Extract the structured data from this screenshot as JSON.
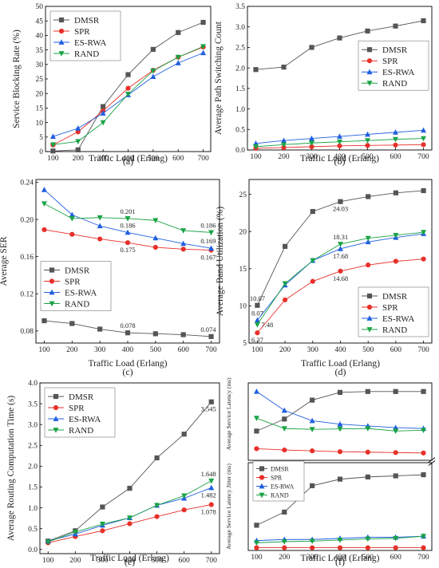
{
  "series_style": {
    "DMSR": {
      "color": "#555555",
      "marker": "square"
    },
    "SPR": {
      "color": "#e8302a",
      "marker": "circle"
    },
    "ES-RWA": {
      "color": "#1f5fe0",
      "marker": "triangle"
    },
    "RAND": {
      "color": "#1aa346",
      "marker": "triangle-down"
    }
  },
  "chart_data": [
    {
      "id": "a",
      "type": "line",
      "panel_label": "(a)",
      "xlabel": "Traffic Load (Erlang)",
      "ylabel": "Service Blocking Rate (%)",
      "x": [
        100,
        200,
        300,
        400,
        500,
        600,
        700
      ],
      "xticks": [
        100,
        200,
        300,
        400,
        500,
        600,
        700
      ],
      "xlim": [
        70,
        730
      ],
      "ylim": [
        0,
        50
      ],
      "yticks": [
        0,
        5,
        10,
        15,
        20,
        25,
        30,
        35,
        40,
        45,
        50
      ],
      "legend": "top-left",
      "series": [
        {
          "name": "DMSR",
          "values": [
            0.2,
            0.6,
            15.5,
            26.5,
            35.2,
            41.0,
            44.5
          ]
        },
        {
          "name": "SPR",
          "values": [
            2.3,
            6.8,
            14.0,
            21.8,
            28.0,
            32.5,
            36.0
          ]
        },
        {
          "name": "ES-RWA",
          "values": [
            5.2,
            8.0,
            13.2,
            19.5,
            25.8,
            30.5,
            34.0
          ]
        },
        {
          "name": "RAND",
          "values": [
            2.4,
            3.5,
            10.0,
            19.8,
            27.8,
            32.5,
            36.2
          ]
        }
      ]
    },
    {
      "id": "b",
      "type": "line",
      "panel_label": "(b)",
      "xlabel": "Traffic Load (Erlang)",
      "ylabel": "Average Path Switching Count",
      "x": [
        100,
        200,
        300,
        400,
        500,
        600,
        700
      ],
      "xticks": [
        100,
        200,
        300,
        400,
        500,
        600,
        700
      ],
      "xlim": [
        70,
        730
      ],
      "ylim": [
        0,
        3.5
      ],
      "yticks": [
        0.0,
        0.5,
        1.0,
        1.5,
        2.0,
        2.5,
        3.0,
        3.5
      ],
      "legend": "center-right",
      "series": [
        {
          "name": "DMSR",
          "values": [
            1.96,
            2.02,
            2.5,
            2.73,
            2.9,
            3.02,
            3.15
          ]
        },
        {
          "name": "SPR",
          "values": [
            0.04,
            0.06,
            0.08,
            0.1,
            0.11,
            0.12,
            0.13
          ]
        },
        {
          "name": "ES-RWA",
          "values": [
            0.16,
            0.23,
            0.28,
            0.33,
            0.38,
            0.43,
            0.48
          ]
        },
        {
          "name": "RAND",
          "values": [
            0.08,
            0.13,
            0.17,
            0.2,
            0.23,
            0.26,
            0.28
          ]
        }
      ]
    },
    {
      "id": "c",
      "type": "line",
      "panel_label": "(c)",
      "xlabel": "Traffic Load (Erlang)",
      "ylabel": "Average SER",
      "x": [
        100,
        200,
        300,
        400,
        500,
        600,
        700
      ],
      "xticks": [
        100,
        200,
        300,
        400,
        500,
        600,
        700
      ],
      "xlim": [
        70,
        730
      ],
      "ylim": [
        0.067,
        0.243
      ],
      "yticks": [
        0.08,
        0.12,
        0.16,
        0.2,
        0.24
      ],
      "legend": "center-left",
      "annotations": [
        {
          "series": "RAND",
          "x": 400,
          "text": "0.201",
          "pos": "above"
        },
        {
          "series": "RAND",
          "x": 700,
          "text": "0.186",
          "pos": "above"
        },
        {
          "series": "ES-RWA",
          "x": 400,
          "text": "0.186",
          "pos": "above"
        },
        {
          "series": "ES-RWA",
          "x": 700,
          "text": "0.169",
          "pos": "above"
        },
        {
          "series": "SPR",
          "x": 400,
          "text": "0.175",
          "pos": "below"
        },
        {
          "series": "SPR",
          "x": 700,
          "text": "0.167",
          "pos": "below"
        },
        {
          "series": "DMSR",
          "x": 400,
          "text": "0.078",
          "pos": "above"
        },
        {
          "series": "DMSR",
          "x": 700,
          "text": "0.074",
          "pos": "above"
        }
      ],
      "series": [
        {
          "name": "DMSR",
          "values": [
            0.091,
            0.088,
            0.082,
            0.078,
            0.077,
            0.076,
            0.074
          ]
        },
        {
          "name": "SPR",
          "values": [
            0.189,
            0.184,
            0.179,
            0.175,
            0.17,
            0.168,
            0.167
          ]
        },
        {
          "name": "ES-RWA",
          "values": [
            0.232,
            0.205,
            0.193,
            0.186,
            0.18,
            0.174,
            0.169
          ]
        },
        {
          "name": "RAND",
          "values": [
            0.217,
            0.201,
            0.202,
            0.201,
            0.199,
            0.188,
            0.186
          ]
        }
      ]
    },
    {
      "id": "d",
      "type": "line",
      "panel_label": "(d)",
      "xlabel": "Traffic Load (Erlang)",
      "ylabel": "Average Band Utilization (%)",
      "x": [
        100,
        200,
        300,
        400,
        500,
        600,
        700
      ],
      "xticks": [
        100,
        200,
        300,
        400,
        500,
        600,
        700
      ],
      "xlim": [
        70,
        730
      ],
      "ylim": [
        5,
        27
      ],
      "yticks": [
        5,
        10,
        15,
        20,
        25
      ],
      "legend": "bottom-right",
      "annotations": [
        {
          "series": "DMSR",
          "x": 100,
          "text": "10.07",
          "pos": "above"
        },
        {
          "series": "ES-RWA",
          "x": 100,
          "text": "8.07",
          "pos": "above"
        },
        {
          "series": "RAND",
          "x": 100,
          "text": "7.48",
          "pos": "right"
        },
        {
          "series": "SPR",
          "x": 100,
          "text": "6.37",
          "pos": "below"
        },
        {
          "series": "DMSR",
          "x": 400,
          "text": "24.03",
          "pos": "below"
        },
        {
          "series": "RAND",
          "x": 400,
          "text": "18.31",
          "pos": "above"
        },
        {
          "series": "ES-RWA",
          "x": 400,
          "text": "17.68",
          "pos": "below"
        },
        {
          "series": "SPR",
          "x": 400,
          "text": "14.68",
          "pos": "below"
        }
      ],
      "series": [
        {
          "name": "DMSR",
          "values": [
            10.07,
            18.0,
            22.7,
            24.03,
            24.7,
            25.2,
            25.5
          ]
        },
        {
          "name": "SPR",
          "values": [
            6.37,
            10.8,
            13.3,
            14.68,
            15.5,
            16.0,
            16.3
          ]
        },
        {
          "name": "ES-RWA",
          "values": [
            8.07,
            12.8,
            16.1,
            17.68,
            18.6,
            19.2,
            19.7
          ]
        },
        {
          "name": "RAND",
          "values": [
            7.48,
            13.0,
            16.1,
            18.31,
            19.1,
            19.5,
            19.9
          ]
        }
      ]
    },
    {
      "id": "e",
      "type": "line",
      "panel_label": "(e)",
      "xlabel": "Traffic Load (Erlang)",
      "ylabel": "Average Routing Computation Time (s)",
      "x": [
        100,
        200,
        300,
        400,
        500,
        600,
        700
      ],
      "xticks": [
        100,
        200,
        300,
        400,
        500,
        600,
        700
      ],
      "xlim": [
        70,
        730
      ],
      "ylim": [
        -0.1,
        4.0
      ],
      "yticks": [
        0.0,
        0.5,
        1.0,
        1.5,
        2.0,
        2.5,
        3.0,
        3.5,
        4.0
      ],
      "legend": "top-left",
      "annotations": [
        {
          "series": "DMSR",
          "x": 700,
          "text": "3.545",
          "pos": "below"
        },
        {
          "series": "RAND",
          "x": 700,
          "text": "1.648",
          "pos": "above"
        },
        {
          "series": "ES-RWA",
          "x": 700,
          "text": "1.482",
          "pos": "below"
        },
        {
          "series": "SPR",
          "x": 700,
          "text": "1.078",
          "pos": "below"
        }
      ],
      "series": [
        {
          "name": "DMSR",
          "values": [
            0.2,
            0.45,
            1.02,
            1.47,
            2.2,
            2.77,
            3.545
          ]
        },
        {
          "name": "SPR",
          "values": [
            0.16,
            0.31,
            0.45,
            0.62,
            0.79,
            0.95,
            1.078
          ]
        },
        {
          "name": "ES-RWA",
          "values": [
            0.2,
            0.37,
            0.58,
            0.76,
            1.06,
            1.23,
            1.482
          ]
        },
        {
          "name": "RAND",
          "values": [
            0.18,
            0.42,
            0.61,
            0.76,
            1.06,
            1.29,
            1.648
          ]
        }
      ]
    },
    {
      "id": "f_top",
      "type": "line",
      "panel_label": "",
      "xlabel": "",
      "ylabel": "Average Service Latency (ms)",
      "x": [
        100,
        200,
        300,
        400,
        500,
        600,
        700
      ],
      "xticks": [],
      "xlim": [
        70,
        730
      ],
      "ylim": [
        6,
        15
      ],
      "yticks": [],
      "legend": "none",
      "series": [
        {
          "name": "DMSR",
          "values": [
            9.4,
            10.8,
            13.0,
            13.9,
            14.0,
            14.0,
            14.0
          ]
        },
        {
          "name": "SPR",
          "values": [
            7.35,
            7.2,
            7.1,
            7.0,
            6.95,
            6.9,
            6.85
          ]
        },
        {
          "name": "ES-RWA",
          "values": [
            14.0,
            11.8,
            10.6,
            10.2,
            10.0,
            9.8,
            9.7
          ]
        },
        {
          "name": "RAND",
          "values": [
            10.9,
            9.7,
            9.6,
            9.65,
            9.7,
            9.4,
            9.5
          ]
        }
      ]
    },
    {
      "id": "f_bottom",
      "type": "line",
      "panel_label": "(f)",
      "xlabel": "Traffic Load (Erlang)",
      "ylabel": "Average Service Latency Jitter (ms)",
      "x": [
        100,
        200,
        300,
        400,
        500,
        600,
        700
      ],
      "xticks": [
        100,
        200,
        300,
        400,
        500,
        600,
        700
      ],
      "xlim": [
        70,
        730
      ],
      "ylim": [
        0,
        8
      ],
      "yticks": [],
      "legend": "top-left",
      "series": [
        {
          "name": "DMSR",
          "values": [
            2.3,
            3.5,
            5.9,
            6.5,
            6.7,
            6.8,
            6.9
          ]
        },
        {
          "name": "SPR",
          "values": [
            0.25,
            0.25,
            0.25,
            0.25,
            0.25,
            0.25,
            0.25
          ]
        },
        {
          "name": "ES-RWA",
          "values": [
            0.9,
            1.0,
            1.0,
            1.1,
            1.2,
            1.2,
            1.3
          ]
        },
        {
          "name": "RAND",
          "values": [
            0.7,
            0.8,
            0.85,
            0.95,
            1.05,
            1.1,
            1.3
          ]
        }
      ]
    }
  ]
}
